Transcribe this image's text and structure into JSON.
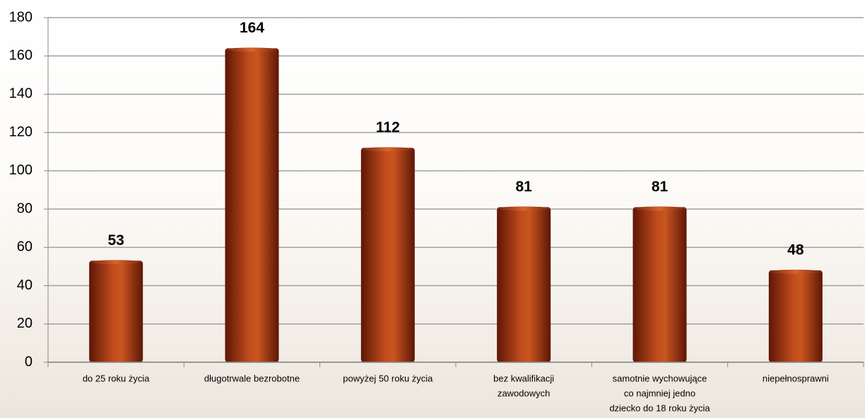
{
  "chart_data": {
    "type": "bar",
    "categories": [
      [
        "do 25 roku życia"
      ],
      [
        "długotrwale bezrobotne"
      ],
      [
        "powyżej 50 roku życia"
      ],
      [
        "bez kwalifikacji",
        "zawodowych"
      ],
      [
        "samotnie wychowujące",
        "co najmniej jedno",
        "dziecko do 18 roku życia"
      ],
      [
        "niepełnosprawni"
      ]
    ],
    "values": [
      53,
      164,
      112,
      81,
      81,
      48
    ],
    "color": "#b5431a",
    "ylim": [
      0,
      180
    ],
    "yticks": [
      0,
      20,
      40,
      60,
      80,
      100,
      120,
      140,
      160,
      180
    ],
    "grid": true
  }
}
